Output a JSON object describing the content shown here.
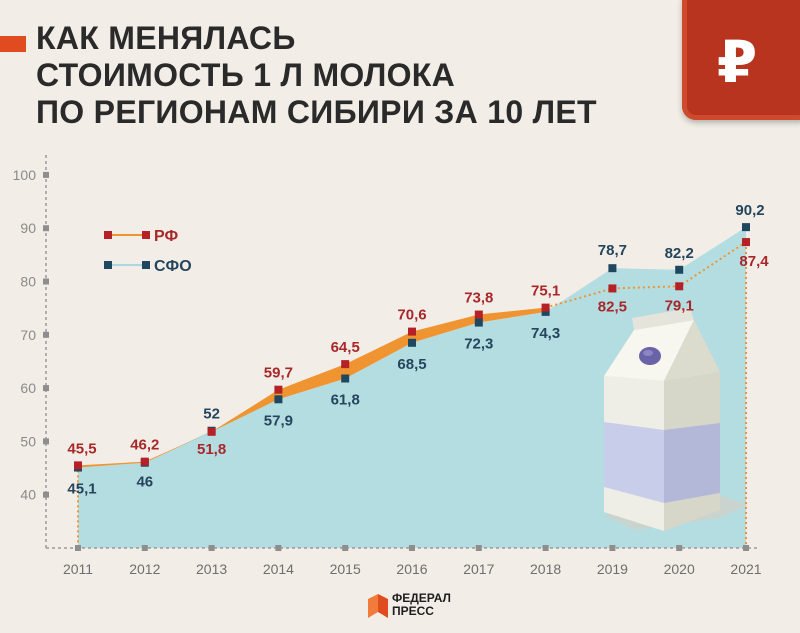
{
  "title_lines": [
    "КАК МЕНЯЛАСЬ",
    "СТОИМОСТЬ 1 Л МОЛОКА",
    "ПО РЕГИОНАМ СИБИРИ ЗА 10 ЛЕТ"
  ],
  "badge_symbol": "₽",
  "logo": {
    "line1": "ФЕДЕРАЛ",
    "line2": "ПРЕСС"
  },
  "colors": {
    "background": "#f2eee7",
    "rf": "#ef9430",
    "rf_marker": "#b42126",
    "rf_label": "#a8282a",
    "sfo": "#a9d9e0",
    "sfo_marker": "#1f4760",
    "sfo_label": "#25455d",
    "accent": "#e04b1f"
  },
  "illustration": "milk-carton",
  "chart_data": {
    "type": "line",
    "x": [
      2011,
      2012,
      2013,
      2014,
      2015,
      2016,
      2017,
      2018,
      2019,
      2020,
      2021
    ],
    "series": [
      {
        "name": "РФ",
        "values": [
          45.5,
          46.2,
          51.8,
          59.7,
          64.5,
          70.6,
          73.8,
          75.1,
          78.7,
          79.1,
          87.4
        ],
        "labels": [
          "45,5",
          "46,2",
          "51,8",
          "59,7",
          "64,5",
          "70,6",
          "73,8",
          "75,1",
          "",
          "79,1",
          "87,4"
        ]
      },
      {
        "name": "СФО",
        "values": [
          45.1,
          46,
          52,
          57.9,
          61.8,
          68.5,
          72.3,
          74.3,
          82.5,
          82.2,
          90.2
        ],
        "labels": [
          "45,1",
          "46",
          "52",
          "57,9",
          "61,8",
          "68,5",
          "72,3",
          "74,3",
          "",
          "82,2",
          "90,2"
        ]
      }
    ],
    "extra_labels": [
      "78,7",
      "82,5"
    ],
    "yticks": [
      "100",
      "90",
      "80",
      "70",
      "60",
      "50",
      "40"
    ],
    "xticks": [
      "2011",
      "2012",
      "2013",
      "2014",
      "2015",
      "2016",
      "2017",
      "2018",
      "2019",
      "2020",
      "2021"
    ],
    "ylim": [
      30,
      100
    ],
    "grid": false,
    "legend": "top-left"
  }
}
